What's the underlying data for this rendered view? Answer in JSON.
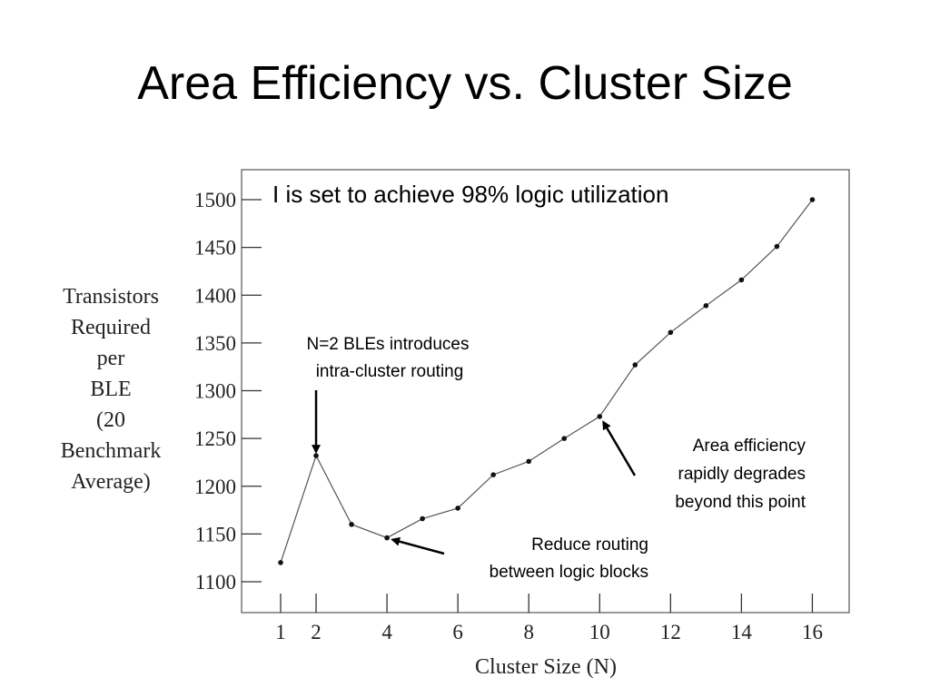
{
  "slide": {
    "title": "Area Efficiency vs. Cluster Size"
  },
  "chart_data": {
    "type": "line",
    "title": "",
    "xlabel": "Cluster Size (N)",
    "ylabel_lines": [
      "Transistors",
      "Required",
      "per",
      "BLE",
      "(20",
      "Benchmark",
      "Average)"
    ],
    "x_ticks": [
      1,
      2,
      4,
      6,
      8,
      10,
      12,
      14,
      16
    ],
    "y_ticks": [
      1100,
      1150,
      1200,
      1250,
      1300,
      1350,
      1400,
      1450,
      1500
    ],
    "xlim": [
      0.5,
      17
    ],
    "ylim": [
      1080,
      1525
    ],
    "grid": false,
    "series": [
      {
        "x": [
          1,
          2,
          3,
          4,
          5,
          6,
          7,
          8,
          9,
          10,
          11,
          12,
          13,
          14,
          15,
          16
        ],
        "values": [
          1120,
          1232,
          1160,
          1146,
          1166,
          1177,
          1212,
          1226,
          1250,
          1273,
          1327,
          1361,
          1389,
          1416,
          1451,
          1500
        ]
      }
    ],
    "annotations": [
      {
        "lines": [
          "I is set to achieve 98% logic utilization"
        ]
      },
      {
        "lines": [
          "N=2 BLEs introduces",
          "intra-cluster routing"
        ],
        "point": [
          2,
          1232
        ]
      },
      {
        "lines": [
          "Reduce routing",
          "between logic blocks"
        ],
        "point": [
          4,
          1146
        ]
      },
      {
        "lines": [
          "Area efficiency",
          "rapidly degrades",
          "beyond this point"
        ],
        "point": [
          10,
          1273
        ]
      }
    ]
  }
}
